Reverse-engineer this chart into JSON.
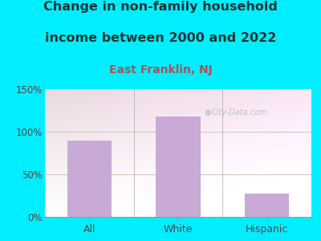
{
  "title_line1": "Change in non-family household",
  "title_line2": "income between 2000 and 2022",
  "subtitle": "East Franklin, NJ",
  "categories": [
    "All",
    "White",
    "Hispanic"
  ],
  "values": [
    90,
    118,
    27
  ],
  "bar_color": "#c9aad6",
  "ylim": [
    0,
    150
  ],
  "yticks": [
    0,
    50,
    100,
    150
  ],
  "ytick_labels": [
    "0%",
    "50%",
    "100%",
    "150%"
  ],
  "title_fontsize": 11.5,
  "subtitle_fontsize": 10,
  "title_color": "#1a3535",
  "subtitle_color": "#b05050",
  "tick_color": "#5a4040",
  "watermark": "City-Data.com",
  "bg_outer": "#00eeff",
  "grid_color": "#ddddcc",
  "bg_grad_top": "#d8f0d8",
  "bg_grad_bottom": "#f8fff4"
}
